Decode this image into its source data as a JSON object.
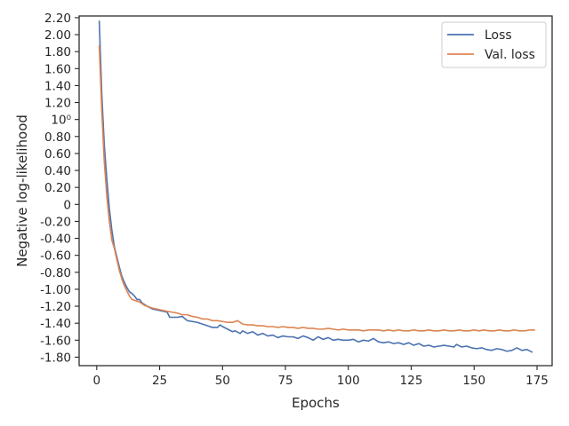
{
  "chart_data": {
    "type": "line",
    "xlabel": "Epochs",
    "ylabel": "Negative log-likelihood",
    "xlim": [
      -7,
      181
    ],
    "ylim": [
      -1.9,
      2.22
    ],
    "x_ticks": [
      0,
      25,
      50,
      75,
      100,
      125,
      150,
      175
    ],
    "y_ticks": [
      {
        "value": 2.2,
        "label": "2.20"
      },
      {
        "value": 2.0,
        "label": "2.00"
      },
      {
        "value": 1.8,
        "label": "1.80"
      },
      {
        "value": 1.6,
        "label": "1.60"
      },
      {
        "value": 1.4,
        "label": "1.40"
      },
      {
        "value": 1.2,
        "label": "1.20"
      },
      {
        "value": 1.0,
        "label": "10⁰"
      },
      {
        "value": 0.8,
        "label": "0.80"
      },
      {
        "value": 0.6,
        "label": "0.60"
      },
      {
        "value": 0.4,
        "label": "0.40"
      },
      {
        "value": 0.2,
        "label": "0.20"
      },
      {
        "value": 0.0,
        "label": "0"
      },
      {
        "value": -0.2,
        "label": "-0.20"
      },
      {
        "value": -0.4,
        "label": "-0.40"
      },
      {
        "value": -0.6,
        "label": "-0.60"
      },
      {
        "value": -0.8,
        "label": "-0.80"
      },
      {
        "value": -1.0,
        "label": "-1.00"
      },
      {
        "value": -1.2,
        "label": "-1.20"
      },
      {
        "value": -1.4,
        "label": "-1.40"
      },
      {
        "value": -1.6,
        "label": "-1.60"
      },
      {
        "value": -1.8,
        "label": "-1.80"
      }
    ],
    "legend_position": "top-right",
    "grid": false,
    "series": [
      {
        "name": "Loss",
        "color": "#4c72b0",
        "points": [
          [
            1,
            2.16
          ],
          [
            2,
            1.3
          ],
          [
            3,
            0.7
          ],
          [
            4,
            0.3
          ],
          [
            5,
            -0.05
          ],
          [
            6,
            -0.3
          ],
          [
            7,
            -0.5
          ],
          [
            8,
            -0.62
          ],
          [
            9,
            -0.74
          ],
          [
            10,
            -0.85
          ],
          [
            11,
            -0.92
          ],
          [
            12,
            -0.98
          ],
          [
            13,
            -1.03
          ],
          [
            14,
            -1.05
          ],
          [
            15,
            -1.08
          ],
          [
            16,
            -1.12
          ],
          [
            17,
            -1.12
          ],
          [
            18,
            -1.16
          ],
          [
            19,
            -1.18
          ],
          [
            20,
            -1.2
          ],
          [
            22,
            -1.23
          ],
          [
            25,
            -1.25
          ],
          [
            28,
            -1.27
          ],
          [
            29,
            -1.33
          ],
          [
            32,
            -1.33
          ],
          [
            34,
            -1.32
          ],
          [
            36,
            -1.37
          ],
          [
            38,
            -1.38
          ],
          [
            40,
            -1.39
          ],
          [
            42,
            -1.41
          ],
          [
            44,
            -1.43
          ],
          [
            46,
            -1.45
          ],
          [
            48,
            -1.45
          ],
          [
            49,
            -1.42
          ],
          [
            50,
            -1.44
          ],
          [
            52,
            -1.47
          ],
          [
            54,
            -1.5
          ],
          [
            55,
            -1.49
          ],
          [
            57,
            -1.52
          ],
          [
            58,
            -1.49
          ],
          [
            60,
            -1.52
          ],
          [
            62,
            -1.5
          ],
          [
            64,
            -1.54
          ],
          [
            66,
            -1.52
          ],
          [
            68,
            -1.55
          ],
          [
            70,
            -1.54
          ],
          [
            72,
            -1.57
          ],
          [
            74,
            -1.55
          ],
          [
            76,
            -1.56
          ],
          [
            78,
            -1.56
          ],
          [
            80,
            -1.58
          ],
          [
            82,
            -1.55
          ],
          [
            84,
            -1.57
          ],
          [
            86,
            -1.6
          ],
          [
            88,
            -1.56
          ],
          [
            90,
            -1.59
          ],
          [
            92,
            -1.57
          ],
          [
            94,
            -1.6
          ],
          [
            96,
            -1.59
          ],
          [
            98,
            -1.6
          ],
          [
            100,
            -1.6
          ],
          [
            102,
            -1.59
          ],
          [
            104,
            -1.62
          ],
          [
            106,
            -1.6
          ],
          [
            108,
            -1.61
          ],
          [
            110,
            -1.58
          ],
          [
            112,
            -1.62
          ],
          [
            114,
            -1.63
          ],
          [
            116,
            -1.62
          ],
          [
            118,
            -1.64
          ],
          [
            120,
            -1.63
          ],
          [
            122,
            -1.65
          ],
          [
            124,
            -1.63
          ],
          [
            126,
            -1.66
          ],
          [
            128,
            -1.64
          ],
          [
            130,
            -1.67
          ],
          [
            132,
            -1.66
          ],
          [
            134,
            -1.68
          ],
          [
            136,
            -1.67
          ],
          [
            138,
            -1.66
          ],
          [
            140,
            -1.67
          ],
          [
            142,
            -1.68
          ],
          [
            143,
            -1.65
          ],
          [
            145,
            -1.68
          ],
          [
            147,
            -1.67
          ],
          [
            149,
            -1.69
          ],
          [
            151,
            -1.7
          ],
          [
            153,
            -1.69
          ],
          [
            155,
            -1.71
          ],
          [
            157,
            -1.72
          ],
          [
            159,
            -1.7
          ],
          [
            161,
            -1.71
          ],
          [
            163,
            -1.73
          ],
          [
            165,
            -1.72
          ],
          [
            167,
            -1.69
          ],
          [
            169,
            -1.72
          ],
          [
            171,
            -1.71
          ],
          [
            173,
            -1.74
          ]
        ]
      },
      {
        "name": "Val. loss",
        "color": "#dd8452",
        "points": [
          [
            1,
            1.87
          ],
          [
            2,
            1.1
          ],
          [
            3,
            0.5
          ],
          [
            4,
            0.1
          ],
          [
            5,
            -0.2
          ],
          [
            6,
            -0.42
          ],
          [
            7,
            -0.52
          ],
          [
            8,
            -0.65
          ],
          [
            9,
            -0.78
          ],
          [
            10,
            -0.88
          ],
          [
            11,
            -0.96
          ],
          [
            12,
            -1.02
          ],
          [
            13,
            -1.08
          ],
          [
            14,
            -1.12
          ],
          [
            15,
            -1.13
          ],
          [
            16,
            -1.14
          ],
          [
            17,
            -1.15
          ],
          [
            18,
            -1.17
          ],
          [
            19,
            -1.19
          ],
          [
            20,
            -1.2
          ],
          [
            22,
            -1.22
          ],
          [
            25,
            -1.24
          ],
          [
            28,
            -1.26
          ],
          [
            30,
            -1.27
          ],
          [
            32,
            -1.28
          ],
          [
            34,
            -1.3
          ],
          [
            36,
            -1.3
          ],
          [
            38,
            -1.32
          ],
          [
            40,
            -1.33
          ],
          [
            42,
            -1.35
          ],
          [
            44,
            -1.35
          ],
          [
            46,
            -1.37
          ],
          [
            48,
            -1.37
          ],
          [
            50,
            -1.38
          ],
          [
            52,
            -1.39
          ],
          [
            54,
            -1.39
          ],
          [
            56,
            -1.37
          ],
          [
            58,
            -1.41
          ],
          [
            60,
            -1.42
          ],
          [
            62,
            -1.42
          ],
          [
            64,
            -1.43
          ],
          [
            66,
            -1.43
          ],
          [
            68,
            -1.44
          ],
          [
            70,
            -1.44
          ],
          [
            72,
            -1.45
          ],
          [
            74,
            -1.44
          ],
          [
            76,
            -1.45
          ],
          [
            78,
            -1.45
          ],
          [
            80,
            -1.46
          ],
          [
            82,
            -1.45
          ],
          [
            84,
            -1.46
          ],
          [
            86,
            -1.46
          ],
          [
            88,
            -1.47
          ],
          [
            90,
            -1.47
          ],
          [
            92,
            -1.46
          ],
          [
            94,
            -1.47
          ],
          [
            96,
            -1.48
          ],
          [
            98,
            -1.47
          ],
          [
            100,
            -1.48
          ],
          [
            102,
            -1.48
          ],
          [
            104,
            -1.48
          ],
          [
            106,
            -1.49
          ],
          [
            108,
            -1.48
          ],
          [
            110,
            -1.48
          ],
          [
            112,
            -1.48
          ],
          [
            114,
            -1.49
          ],
          [
            116,
            -1.48
          ],
          [
            118,
            -1.49
          ],
          [
            120,
            -1.48
          ],
          [
            122,
            -1.49
          ],
          [
            124,
            -1.49
          ],
          [
            126,
            -1.48
          ],
          [
            128,
            -1.49
          ],
          [
            130,
            -1.49
          ],
          [
            132,
            -1.48
          ],
          [
            134,
            -1.49
          ],
          [
            136,
            -1.49
          ],
          [
            138,
            -1.48
          ],
          [
            140,
            -1.49
          ],
          [
            142,
            -1.49
          ],
          [
            144,
            -1.48
          ],
          [
            146,
            -1.49
          ],
          [
            148,
            -1.49
          ],
          [
            150,
            -1.48
          ],
          [
            152,
            -1.49
          ],
          [
            154,
            -1.48
          ],
          [
            156,
            -1.49
          ],
          [
            158,
            -1.49
          ],
          [
            160,
            -1.48
          ],
          [
            162,
            -1.49
          ],
          [
            164,
            -1.49
          ],
          [
            166,
            -1.48
          ],
          [
            168,
            -1.49
          ],
          [
            170,
            -1.49
          ],
          [
            172,
            -1.48
          ],
          [
            174,
            -1.48
          ]
        ]
      }
    ]
  }
}
